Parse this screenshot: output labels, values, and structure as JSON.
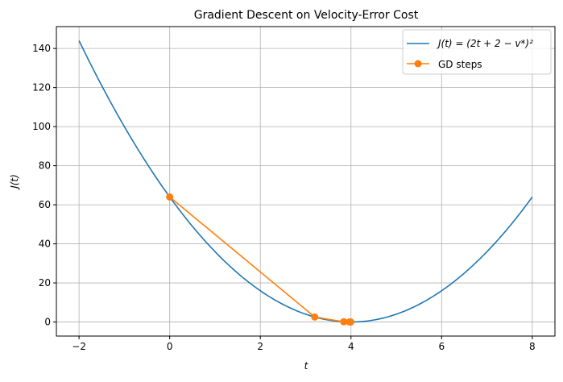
{
  "chart_data": {
    "type": "line",
    "title": "Gradient Descent on Velocity-Error Cost",
    "xlabel": "t",
    "ylabel": "J(t)",
    "xlim": [
      -2.5,
      8.5
    ],
    "ylim": [
      -7.2,
      151.2
    ],
    "xticks": [
      -2,
      0,
      2,
      4,
      6,
      8
    ],
    "yticks": [
      0,
      20,
      40,
      60,
      80,
      100,
      120,
      140
    ],
    "grid": true,
    "legend_placement": "upper-right",
    "series": [
      {
        "name": "J(t) = (2t + 2 − v*)²",
        "color": "#1f77b4",
        "x_range": [
          -2,
          8
        ],
        "formula": "(2t+2-v*)^2"
      },
      {
        "name": "GD steps",
        "color": "#ff7f0e",
        "marker": "circle",
        "x": [
          0,
          3.2,
          3.84,
          3.968,
          3.9936
        ],
        "y": [
          64,
          2.56,
          0.1024,
          0.0041,
          0.0002
        ]
      }
    ]
  }
}
